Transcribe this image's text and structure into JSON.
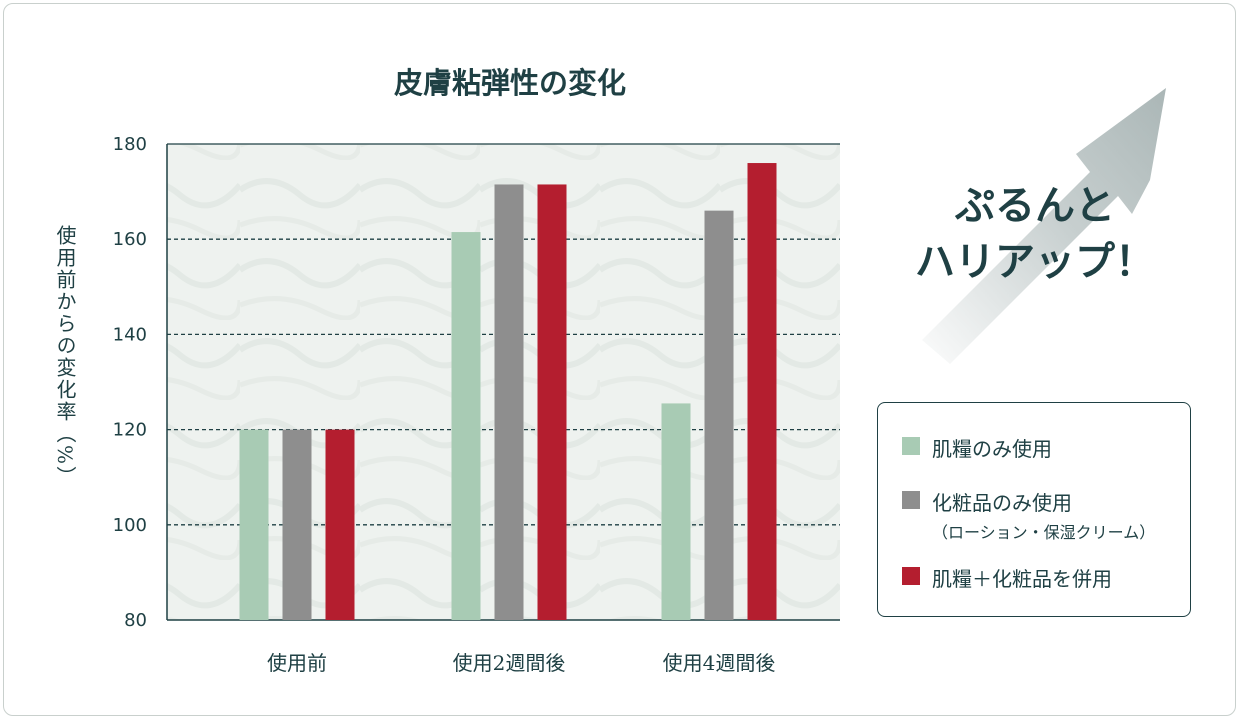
{
  "chart_data": {
    "type": "bar",
    "title": "皮膚粘弾性の変化",
    "ylabel": "使用前からの変化率（%）",
    "xlabel": "",
    "categories": [
      "使用前",
      "使用2週間後",
      "使用4週間後"
    ],
    "ylim": [
      80,
      180
    ],
    "yticks": [
      80,
      100,
      120,
      140,
      160,
      180
    ],
    "grid": "dashed horizontal",
    "series": [
      {
        "name": "肌糧のみ使用",
        "color": "#a8cbb4",
        "values": [
          120,
          161.5,
          125.5
        ]
      },
      {
        "name": "化粧品のみ使用",
        "note": "（ローション・保湿クリーム）",
        "color": "#8e8e8e",
        "values": [
          120,
          171.5,
          166
        ]
      },
      {
        "name": "肌糧＋化粧品を併用",
        "color": "#b41e2f",
        "values": [
          120,
          171.5,
          176
        ]
      }
    ],
    "legend_position": "right"
  },
  "catchphrase": {
    "line1": "ぷるんと",
    "line2": "ハリアップ！"
  },
  "colors": {
    "text": "#1f4044",
    "arrow": "#b9c3c3",
    "plot_bg": "#eef2ef"
  }
}
